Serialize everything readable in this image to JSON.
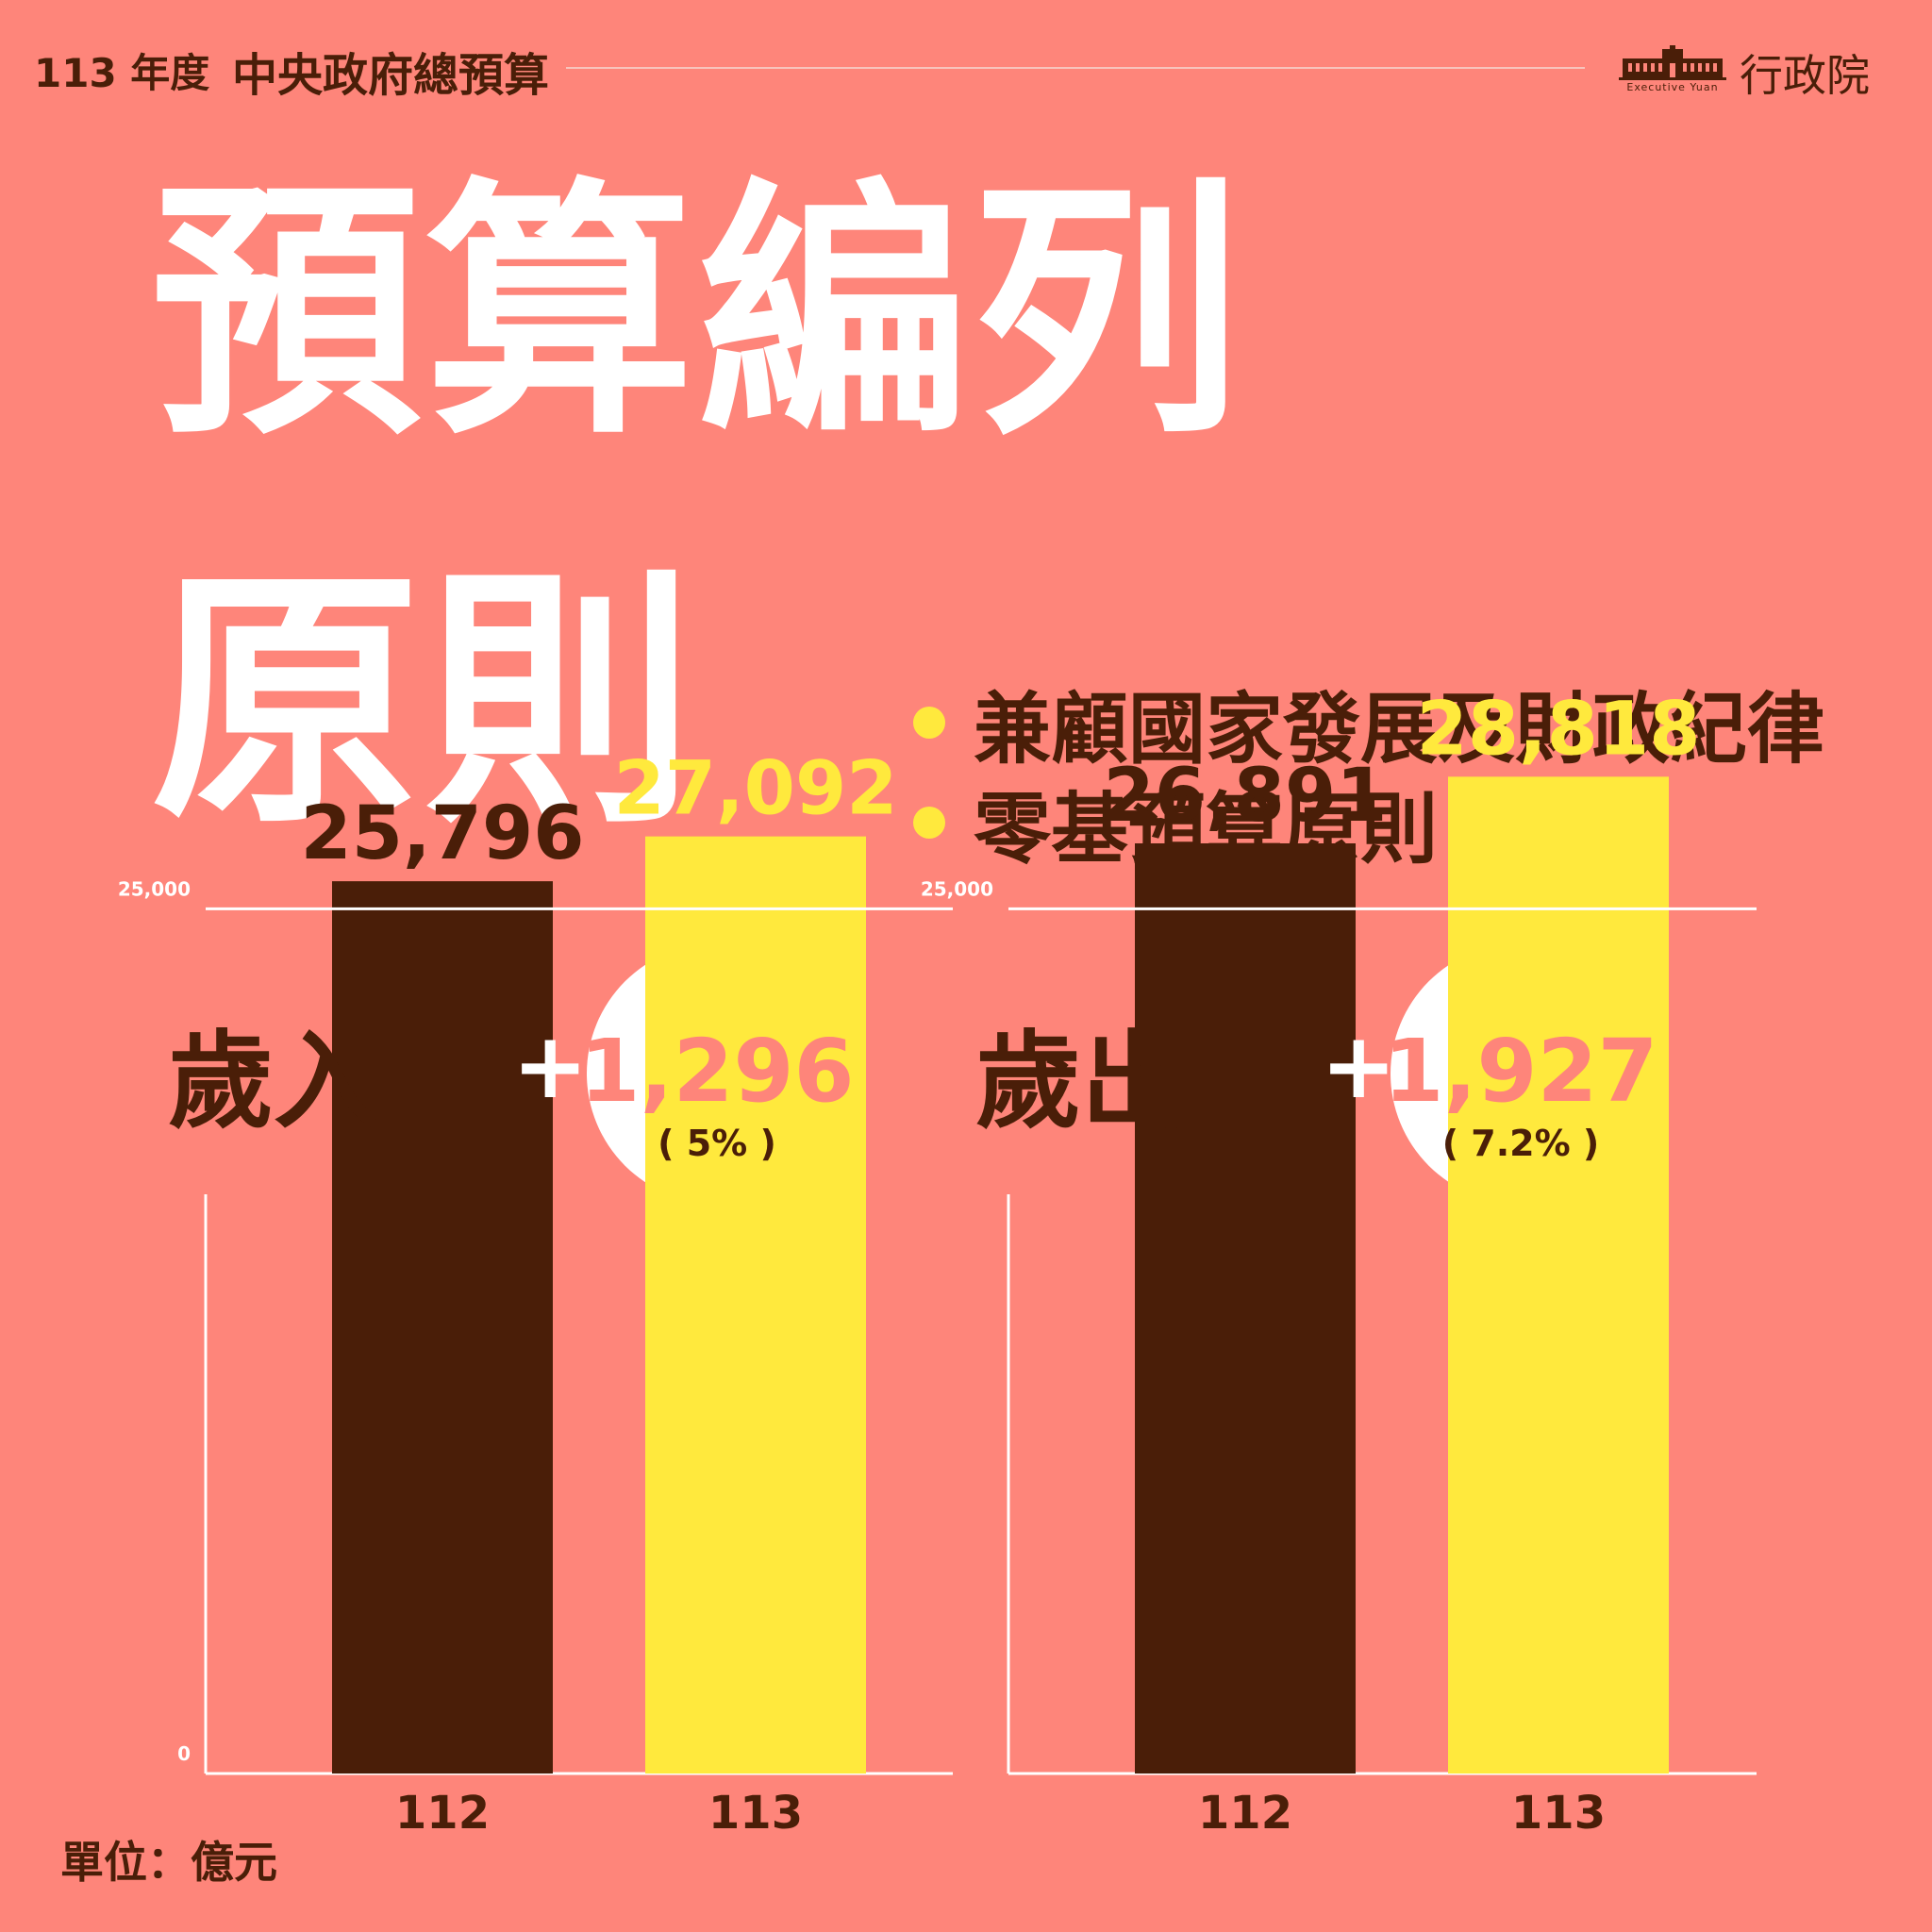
{
  "header": {
    "year_label": "113 年度",
    "title": "中央政府總預算",
    "org_name": "行政院",
    "org_name_en": "Executive Yuan"
  },
  "headline": {
    "line1": "預算編列",
    "line2": "原則"
  },
  "principles": [
    "兼顧國家發展及財政紀律",
    "零基預算原則"
  ],
  "colors": {
    "background": "#fe857a",
    "dark": "#4a1e08",
    "yellow": "#ffe93d",
    "white": "#ffffff"
  },
  "unit_label": "單位：億元",
  "chart_data": [
    {
      "type": "bar",
      "title": "歲入",
      "change": {
        "sign": "+",
        "value": "1,296",
        "percent": "( 5% )"
      },
      "categories": [
        "112",
        "113"
      ],
      "values": [
        25796,
        27092
      ],
      "value_labels": [
        "25,796",
        "27,092"
      ],
      "bar_colors": [
        "#4a1e08",
        "#ffe93d"
      ],
      "yticks": [
        0,
        25000
      ],
      "ytick_labels": [
        "0",
        "25,000"
      ],
      "ylim": [
        0,
        30000
      ],
      "grid": true
    },
    {
      "type": "bar",
      "title": "歲出",
      "change": {
        "sign": "+",
        "value": "1,927",
        "percent": "( 7.2% )"
      },
      "categories": [
        "112",
        "113"
      ],
      "values": [
        26891,
        28818
      ],
      "value_labels": [
        "26,891",
        "28,818"
      ],
      "bar_colors": [
        "#4a1e08",
        "#ffe93d"
      ],
      "yticks": [
        0,
        25000
      ],
      "ytick_labels": [
        "",
        "25,000"
      ],
      "ylim": [
        0,
        30000
      ],
      "grid": true
    }
  ]
}
